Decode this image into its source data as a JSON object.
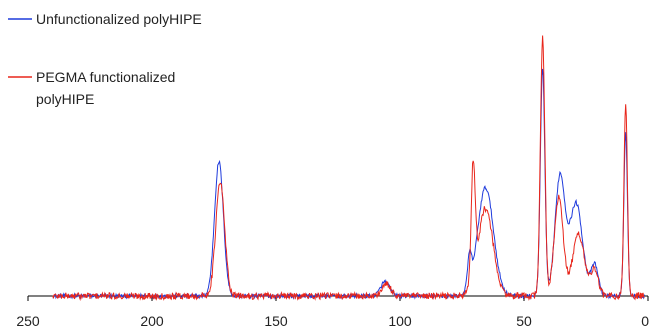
{
  "chart_data": {
    "type": "line",
    "title": "",
    "xlabel": "",
    "ylabel": "",
    "xlim": [
      250,
      0
    ],
    "x_reversed": true,
    "ylim": [
      0,
      1.0
    ],
    "y_axis_visible": false,
    "grid": false,
    "legend_placement": "top-left",
    "x_ticks": [
      250,
      200,
      150,
      100,
      50,
      0
    ],
    "x_tick_labels": [
      "250",
      "200",
      "150",
      "100",
      "50",
      "0"
    ],
    "series": [
      {
        "name": "Unfunctionalized polyHIPE",
        "color": "#1f3bdc",
        "peaks": [
          {
            "center": 173,
            "height": 0.52,
            "width": 1.8
          },
          {
            "center": 106,
            "height": 0.055,
            "width": 1.8
          },
          {
            "center": 65.5,
            "height": 0.42,
            "width": 3.2
          },
          {
            "center": 72,
            "height": 0.12,
            "width": 0.8
          },
          {
            "center": 42.5,
            "height": 0.88,
            "width": 0.9
          },
          {
            "center": 35.5,
            "height": 0.46,
            "width": 2.0
          },
          {
            "center": 29,
            "height": 0.36,
            "width": 2.6
          },
          {
            "center": 21.5,
            "height": 0.12,
            "width": 1.5
          },
          {
            "center": 9,
            "height": 0.64,
            "width": 0.7
          }
        ],
        "noise": 0.008
      },
      {
        "name": "PEGMA functionalized polyHIPE",
        "color": "#e8261b",
        "peaks": [
          {
            "center": 172.5,
            "height": 0.44,
            "width": 1.8
          },
          {
            "center": 105.5,
            "height": 0.045,
            "width": 1.8
          },
          {
            "center": 70.5,
            "height": 0.45,
            "width": 0.8
          },
          {
            "center": 65.5,
            "height": 0.34,
            "width": 3.0
          },
          {
            "center": 42.5,
            "height": 1.0,
            "width": 0.9
          },
          {
            "center": 36,
            "height": 0.38,
            "width": 1.8
          },
          {
            "center": 28,
            "height": 0.24,
            "width": 2.4
          },
          {
            "center": 21.5,
            "height": 0.1,
            "width": 1.5
          },
          {
            "center": 9,
            "height": 0.74,
            "width": 0.7
          }
        ],
        "noise": 0.013
      }
    ]
  },
  "legend": {
    "items": [
      {
        "label_line1": "Unfunctionalized polyHIPE",
        "label_line2": "",
        "color": "#1f3bdc"
      },
      {
        "label_line1": "PEGMA functionalized",
        "label_line2": "polyHIPE",
        "color": "#e8261b"
      }
    ]
  }
}
